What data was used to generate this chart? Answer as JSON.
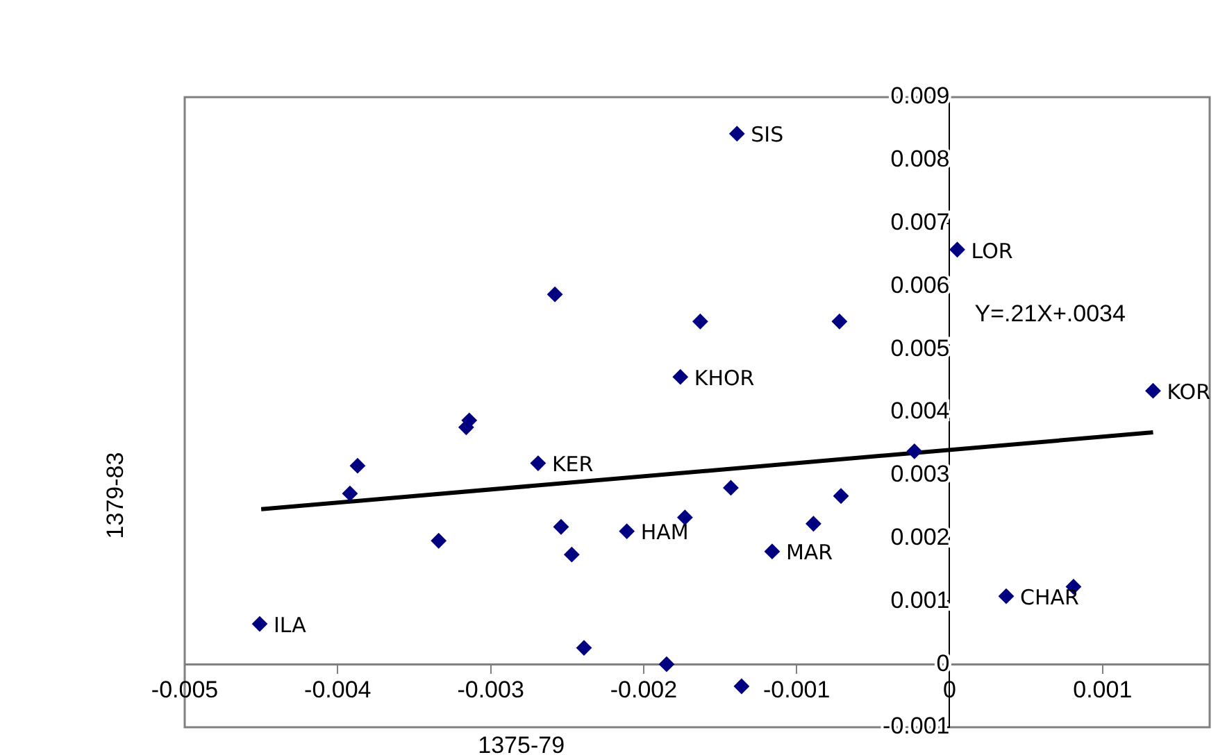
{
  "chart_data": {
    "type": "scatter",
    "xlabel": "1375-79",
    "ylabel": "1379-83",
    "xlim": [
      -0.005,
      0.0017
    ],
    "xticks": [
      -0.005,
      -0.004,
      -0.003,
      -0.002,
      -0.001,
      0,
      0.001
    ],
    "ylim": [
      -0.001,
      0.009
    ],
    "yticks": [
      -0.001,
      0,
      0.001,
      0.002,
      0.003,
      0.004,
      0.005,
      0.006,
      0.007,
      0.008,
      0.009
    ],
    "grid": false,
    "legend": false,
    "marker": "diamond",
    "series": [
      {
        "color": "#000080",
        "x": [
          -0.00451,
          -0.00387,
          -0.00392,
          -0.00334,
          -0.00314,
          -0.00316,
          -0.00258,
          -0.00269,
          -0.00254,
          -0.00247,
          -0.00239,
          -0.00211,
          -0.00185,
          -0.00176,
          -0.00139,
          -0.00163,
          -0.00072,
          5e-05,
          0.00133,
          -0.00023,
          -0.00143,
          -0.00173,
          -0.00071,
          -0.00089,
          -0.00116,
          0.00037,
          0.00081,
          -0.00136
        ],
        "values": [
          0.00064,
          0.00315,
          0.00271,
          0.00196,
          0.00387,
          0.00376,
          0.00587,
          0.00319,
          0.00218,
          0.00174,
          0.00026,
          0.00211,
          0.0,
          0.00456,
          0.00842,
          0.00544,
          0.00544,
          0.00658,
          0.00434,
          0.00338,
          0.0028,
          0.00233,
          0.00267,
          0.00223,
          0.00179,
          0.00108,
          0.00123,
          -0.00035
        ]
      },
      {
        "type": "line",
        "color": "#000000",
        "marker": "none",
        "x": [
          -0.0045,
          0.00133
        ],
        "values": [
          0.00246,
          0.00368
        ]
      }
    ],
    "annotations": [
      {
        "text": "ILA",
        "x": -0.00451,
        "y": 0.00064
      },
      {
        "text": "KER",
        "x": -0.00269,
        "y": 0.00319
      },
      {
        "text": "HAM",
        "x": -0.00211,
        "y": 0.00211
      },
      {
        "text": "KHOR",
        "x": -0.00176,
        "y": 0.00456
      },
      {
        "text": "SIS",
        "x": -0.00139,
        "y": 0.00842
      },
      {
        "text": "LOR",
        "x": 5e-05,
        "y": 0.00658
      },
      {
        "text": "KOR",
        "x": 0.00133,
        "y": 0.00434
      },
      {
        "text": "MAR",
        "x": -0.00116,
        "y": 0.00179
      },
      {
        "text": "CHAR",
        "x": 0.00037,
        "y": 0.00108
      },
      "Y=.21X+.0034"
    ]
  }
}
